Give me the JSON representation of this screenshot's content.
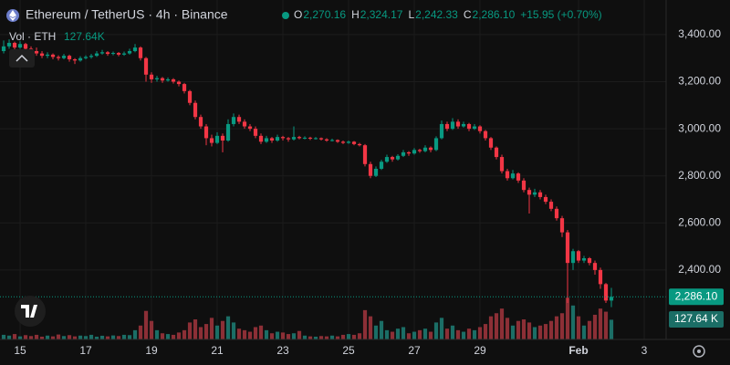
{
  "chart_data": {
    "type": "candlestick",
    "title": "Ethereum / TetherUS · 4h · Binance",
    "ohlc_names": [
      "O",
      "H",
      "L",
      "C"
    ],
    "ohlc_labels": [
      "2,270.16",
      "2,324.17",
      "2,242.33",
      "2,286.10"
    ],
    "change": "+15.95 (+0.70%)",
    "volume_name": "Vol · ETH",
    "volume_label": "127.64K",
    "price_tag": "2,286.10",
    "volume_tag": "127.64 K",
    "up_color": "#089981",
    "down_color": "#f23645",
    "up_volume_color": "#1b6e66",
    "down_volume_color": "#8c2f36",
    "ylim": [
      2105,
      3547
    ],
    "yticks": [
      {
        "value": 2400,
        "label": "2,400.00"
      },
      {
        "value": 2600,
        "label": "2,600.00"
      },
      {
        "value": 2800,
        "label": "2,800.00"
      },
      {
        "value": 3000,
        "label": "3,000.00"
      },
      {
        "value": 3200,
        "label": "3,200.00"
      },
      {
        "value": 3400,
        "label": "3,400.00"
      }
    ],
    "xlim": [
      -0.67,
      121
    ],
    "xticks": [
      {
        "value": 3,
        "label": "15"
      },
      {
        "value": 15,
        "label": "17"
      },
      {
        "value": 27,
        "label": "19"
      },
      {
        "value": 39,
        "label": "21"
      },
      {
        "value": 51,
        "label": "23"
      },
      {
        "value": 63,
        "label": "25"
      },
      {
        "value": 75,
        "label": "27"
      },
      {
        "value": 87,
        "label": "29"
      },
      {
        "value": 105,
        "label": "Feb"
      },
      {
        "value": 117,
        "label": "3"
      }
    ],
    "volume_lim": [
      0,
      2200
    ],
    "grid": true,
    "candles": [
      [
        3330,
        3375,
        3320,
        3350
      ],
      [
        3350,
        3380,
        3340,
        3365
      ],
      [
        3365,
        3370,
        3335,
        3345
      ],
      [
        3345,
        3372,
        3340,
        3360
      ],
      [
        3360,
        3365,
        3330,
        3340
      ],
      [
        3340,
        3350,
        3320,
        3330
      ],
      [
        3330,
        3345,
        3310,
        3320
      ],
      [
        3320,
        3330,
        3300,
        3310
      ],
      [
        3310,
        3325,
        3300,
        3315
      ],
      [
        3315,
        3320,
        3295,
        3305
      ],
      [
        3305,
        3312,
        3290,
        3300
      ],
      [
        3300,
        3318,
        3295,
        3310
      ],
      [
        3310,
        3315,
        3285,
        3295
      ],
      [
        3295,
        3300,
        3275,
        3290
      ],
      [
        3290,
        3308,
        3285,
        3300
      ],
      [
        3300,
        3312,
        3295,
        3305
      ],
      [
        3305,
        3318,
        3298,
        3310
      ],
      [
        3310,
        3330,
        3305,
        3320
      ],
      [
        3320,
        3335,
        3315,
        3325
      ],
      [
        3325,
        3330,
        3310,
        3318
      ],
      [
        3318,
        3328,
        3312,
        3322
      ],
      [
        3322,
        3326,
        3308,
        3315
      ],
      [
        3315,
        3328,
        3310,
        3320
      ],
      [
        3320,
        3340,
        3315,
        3330
      ],
      [
        3330,
        3360,
        3325,
        3345
      ],
      [
        3345,
        3350,
        3290,
        3300
      ],
      [
        3300,
        3305,
        3200,
        3230
      ],
      [
        3230,
        3240,
        3195,
        3210
      ],
      [
        3210,
        3225,
        3200,
        3215
      ],
      [
        3215,
        3220,
        3195,
        3205
      ],
      [
        3205,
        3218,
        3200,
        3210
      ],
      [
        3210,
        3215,
        3192,
        3200
      ],
      [
        3200,
        3205,
        3180,
        3190
      ],
      [
        3190,
        3195,
        3150,
        3160
      ],
      [
        3160,
        3165,
        3100,
        3110
      ],
      [
        3110,
        3120,
        3040,
        3050
      ],
      [
        3050,
        3060,
        3000,
        3010
      ],
      [
        3010,
        3020,
        2930,
        2960
      ],
      [
        2960,
        2975,
        2925,
        2940
      ],
      [
        2940,
        2985,
        2935,
        2970
      ],
      [
        2970,
        2980,
        2900,
        2950
      ],
      [
        2950,
        3040,
        2945,
        3020
      ],
      [
        3020,
        3065,
        3010,
        3050
      ],
      [
        3050,
        3060,
        3020,
        3030
      ],
      [
        3030,
        3040,
        3000,
        3010
      ],
      [
        3010,
        3020,
        2990,
        3000
      ],
      [
        3000,
        3010,
        2960,
        2970
      ],
      [
        2970,
        2980,
        2935,
        2945
      ],
      [
        2945,
        2970,
        2940,
        2960
      ],
      [
        2960,
        2965,
        2940,
        2950
      ],
      [
        2950,
        2975,
        2945,
        2965
      ],
      [
        2965,
        2970,
        2950,
        2960
      ],
      [
        2960,
        2965,
        2945,
        2955
      ],
      [
        2955,
        3010,
        2950,
        2965
      ],
      [
        2965,
        2970,
        2955,
        2960
      ],
      [
        2960,
        2968,
        2955,
        2962
      ],
      [
        2962,
        2966,
        2952,
        2958
      ],
      [
        2958,
        2965,
        2954,
        2960
      ],
      [
        2960,
        2963,
        2950,
        2955
      ],
      [
        2955,
        2960,
        2945,
        2950
      ],
      [
        2950,
        2958,
        2946,
        2952
      ],
      [
        2952,
        2955,
        2940,
        2945
      ],
      [
        2945,
        2950,
        2935,
        2940
      ],
      [
        2940,
        2950,
        2936,
        2945
      ],
      [
        2945,
        2948,
        2930,
        2935
      ],
      [
        2935,
        2940,
        2925,
        2930
      ],
      [
        2930,
        2935,
        2840,
        2850
      ],
      [
        2850,
        2860,
        2790,
        2800
      ],
      [
        2800,
        2840,
        2795,
        2830
      ],
      [
        2830,
        2868,
        2825,
        2860
      ],
      [
        2860,
        2890,
        2855,
        2880
      ],
      [
        2880,
        2885,
        2860,
        2870
      ],
      [
        2870,
        2892,
        2865,
        2885
      ],
      [
        2885,
        2910,
        2880,
        2900
      ],
      [
        2900,
        2905,
        2885,
        2895
      ],
      [
        2895,
        2918,
        2890,
        2910
      ],
      [
        2910,
        2915,
        2898,
        2905
      ],
      [
        2905,
        2930,
        2900,
        2920
      ],
      [
        2920,
        2925,
        2900,
        2910
      ],
      [
        2910,
        2968,
        2905,
        2960
      ],
      [
        2960,
        3035,
        2955,
        3020
      ],
      [
        3020,
        3030,
        2990,
        3000
      ],
      [
        3000,
        3045,
        2995,
        3030
      ],
      [
        3030,
        3040,
        3000,
        3010
      ],
      [
        3010,
        3030,
        3005,
        3020
      ],
      [
        3020,
        3025,
        2990,
        3000
      ],
      [
        3000,
        3020,
        2995,
        3010
      ],
      [
        3010,
        3015,
        2980,
        2990
      ],
      [
        2990,
        2995,
        2950,
        2960
      ],
      [
        2960,
        2965,
        2910,
        2920
      ],
      [
        2920,
        2925,
        2870,
        2880
      ],
      [
        2880,
        2890,
        2810,
        2820
      ],
      [
        2820,
        2830,
        2780,
        2790
      ],
      [
        2790,
        2825,
        2785,
        2810
      ],
      [
        2810,
        2815,
        2770,
        2780
      ],
      [
        2780,
        2790,
        2730,
        2740
      ],
      [
        2740,
        2750,
        2640,
        2720
      ],
      [
        2720,
        2745,
        2710,
        2730
      ],
      [
        2730,
        2740,
        2700,
        2710
      ],
      [
        2710,
        2720,
        2680,
        2690
      ],
      [
        2690,
        2700,
        2650,
        2660
      ],
      [
        2660,
        2670,
        2610,
        2620
      ],
      [
        2620,
        2630,
        2540,
        2560
      ],
      [
        2560,
        2570,
        2260,
        2430
      ],
      [
        2430,
        2490,
        2400,
        2480
      ],
      [
        2480,
        2485,
        2430,
        2440
      ],
      [
        2440,
        2460,
        2430,
        2450
      ],
      [
        2450,
        2455,
        2420,
        2430
      ],
      [
        2430,
        2440,
        2380,
        2400
      ],
      [
        2400,
        2410,
        2320,
        2340
      ],
      [
        2340,
        2345,
        2260,
        2270.16
      ],
      [
        2270.16,
        2324.17,
        2242.33,
        2286.1
      ]
    ],
    "volume": [
      30,
      25,
      35,
      20,
      28,
      22,
      30,
      18,
      25,
      20,
      32,
      22,
      28,
      20,
      25,
      22,
      30,
      18,
      24,
      20,
      26,
      22,
      30,
      28,
      60,
      90,
      185,
      120,
      60,
      40,
      35,
      30,
      45,
      60,
      110,
      130,
      80,
      100,
      140,
      90,
      120,
      150,
      110,
      70,
      60,
      50,
      80,
      90,
      60,
      40,
      50,
      45,
      35,
      40,
      55,
      25,
      20,
      18,
      22,
      20,
      25,
      20,
      30,
      35,
      30,
      40,
      190,
      150,
      90,
      120,
      60,
      50,
      70,
      80,
      40,
      50,
      60,
      70,
      50,
      110,
      140,
      70,
      90,
      60,
      50,
      70,
      60,
      80,
      100,
      150,
      170,
      200,
      140,
      90,
      120,
      130,
      110,
      80,
      90,
      100,
      120,
      150,
      170,
      270,
      220,
      150,
      90,
      120,
      160,
      200,
      180,
      127.64
    ]
  }
}
